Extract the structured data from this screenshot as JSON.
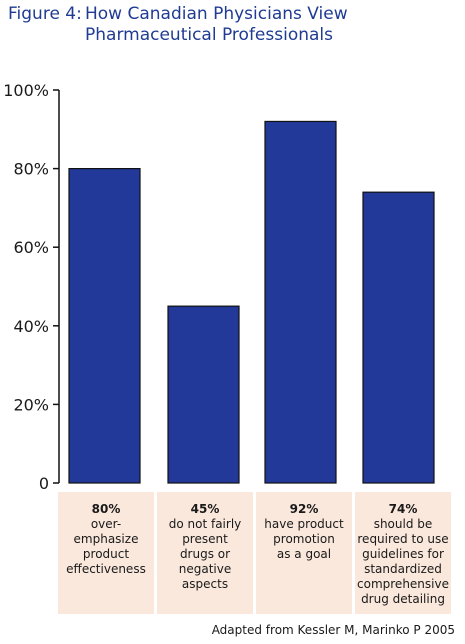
{
  "figure": {
    "label": "Figure 4:",
    "title": "How Canadian Physicians View Pharmaceutical Professionals"
  },
  "source": "Adapted from Kessler M, Marinko P 2005",
  "colors": {
    "title": "#1f3b93",
    "bar": "#23399a",
    "label_box": "#fae8dc"
  },
  "chart_data": {
    "type": "bar",
    "title": "How Canadian Physicians View Pharmaceutical Professionals",
    "xlabel": "",
    "ylabel": "",
    "ylim": [
      0,
      100
    ],
    "yticks": [
      "0",
      "20%",
      "40%",
      "60%",
      "80%",
      "100%"
    ],
    "grid": false,
    "categories": [
      {
        "pct": "80%",
        "desc": "over-emphasize product effectiveness"
      },
      {
        "pct": "45%",
        "desc": "do not fairly present drugs or negative aspects"
      },
      {
        "pct": "92%",
        "desc": "have product promotion as a goal"
      },
      {
        "pct": "74%",
        "desc": "should be required to use guidelines for standardized comprehensive drug detailing"
      }
    ],
    "values": [
      80,
      45,
      92,
      74
    ]
  }
}
